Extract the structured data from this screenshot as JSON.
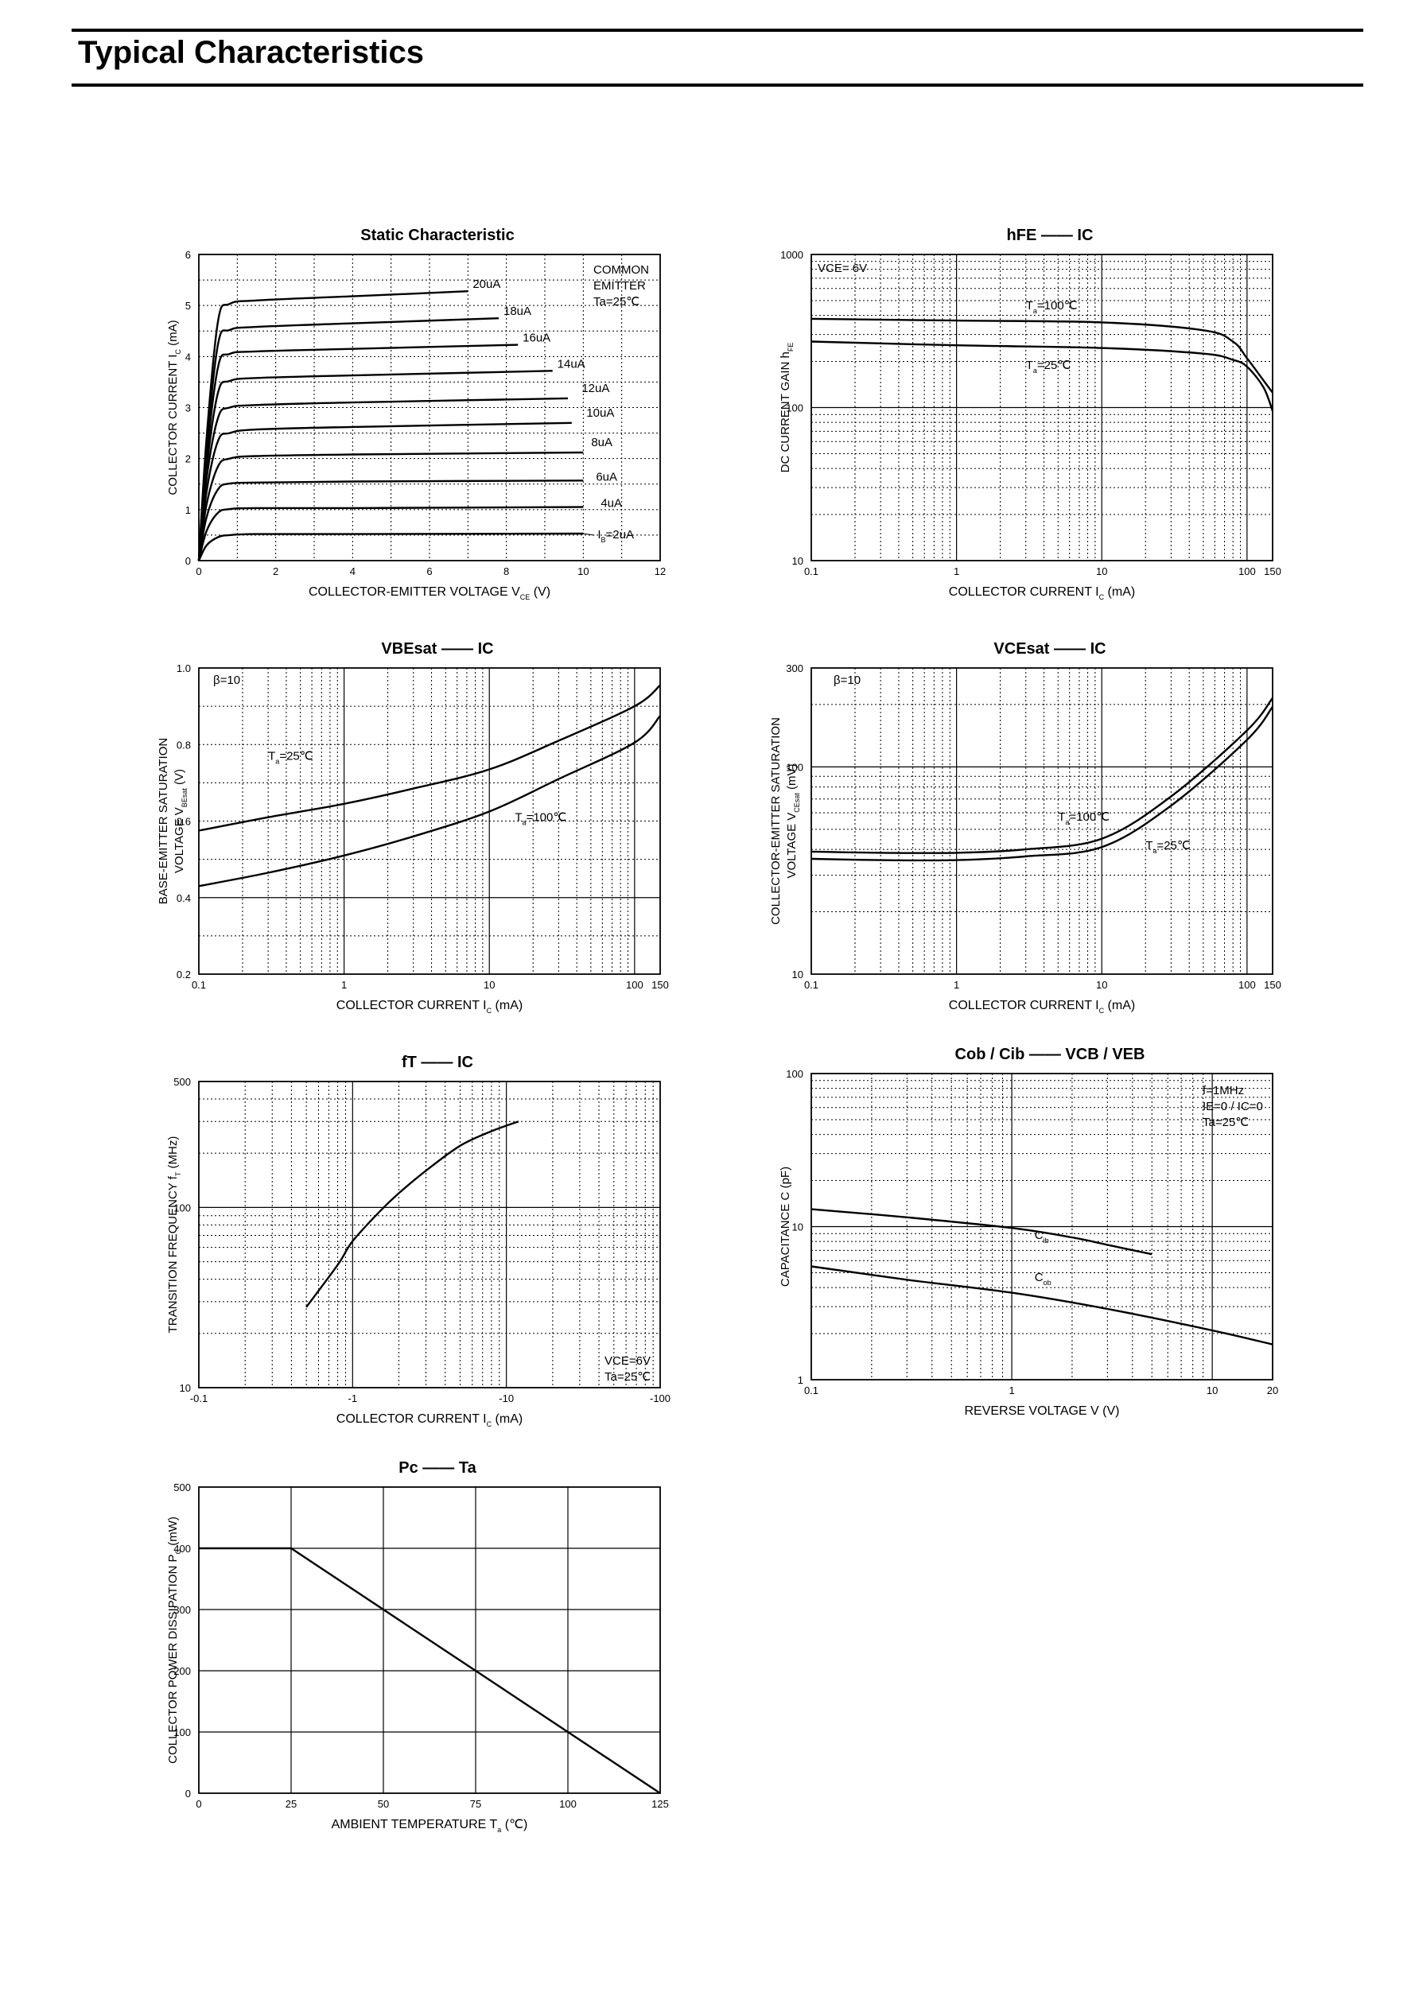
{
  "page": {
    "title": "Typical Characteristics"
  },
  "chart_data": [
    {
      "id": "static",
      "type": "line",
      "title": "Static Characteristic",
      "ylabel": "COLLECTOR CURRENT",
      "ylabel_sym": "I",
      "ylabel_sub": "C",
      "ylabel_unit": "(mA)",
      "xlabel": "COLLECTOR-EMITTER VOLTAGE",
      "xlabel_sym": "V",
      "xlabel_sub": "CE",
      "xlabel_unit": "(V)",
      "x_scale": "linear",
      "y_scale": "linear",
      "xlim": [
        0,
        12
      ],
      "ylim": [
        0,
        6
      ],
      "xticks": [
        0,
        2,
        4,
        6,
        8,
        10,
        12
      ],
      "yticks": [
        0,
        1,
        2,
        3,
        4,
        5,
        6
      ],
      "grid": "dotted",
      "conditions": [
        "COMMON",
        "EMITTER",
        "Ta=25℃"
      ],
      "series": [
        {
          "name": "IB=2uA",
          "x": [
            0,
            0.2,
            0.5,
            0.8,
            1.5,
            4,
            10
          ],
          "y": [
            0,
            0.3,
            0.46,
            0.5,
            0.52,
            0.52,
            0.53
          ]
        },
        {
          "name": "4uA",
          "x": [
            0,
            0.2,
            0.5,
            0.8,
            1.5,
            4,
            10
          ],
          "y": [
            0,
            0.58,
            0.94,
            1.01,
            1.03,
            1.03,
            1.05
          ]
        },
        {
          "name": "6uA",
          "x": [
            0,
            0.2,
            0.5,
            0.8,
            1.5,
            4,
            10
          ],
          "y": [
            0,
            0.85,
            1.4,
            1.51,
            1.53,
            1.55,
            1.57
          ]
        },
        {
          "name": "8uA",
          "x": [
            0,
            0.2,
            0.5,
            0.8,
            1.5,
            4,
            10
          ],
          "y": [
            0,
            1.1,
            1.85,
            2.0,
            2.05,
            2.08,
            2.12
          ]
        },
        {
          "name": "10uA",
          "x": [
            0,
            0.2,
            0.5,
            0.8,
            1.5,
            4,
            9.7
          ],
          "y": [
            0,
            1.35,
            2.35,
            2.5,
            2.57,
            2.62,
            2.7
          ]
        },
        {
          "name": "12uA",
          "x": [
            0,
            0.2,
            0.5,
            0.8,
            1.5,
            4,
            9.6
          ],
          "y": [
            0,
            1.6,
            2.8,
            3.0,
            3.05,
            3.1,
            3.18
          ]
        },
        {
          "name": "14uA",
          "x": [
            0,
            0.2,
            0.5,
            0.8,
            1.5,
            4,
            9.2
          ],
          "y": [
            0,
            1.8,
            3.3,
            3.52,
            3.58,
            3.63,
            3.72
          ]
        },
        {
          "name": "16uA",
          "x": [
            0,
            0.2,
            0.5,
            0.8,
            1.5,
            4,
            8.3
          ],
          "y": [
            0,
            2.0,
            3.8,
            4.05,
            4.1,
            4.15,
            4.23
          ]
        },
        {
          "name": "18uA",
          "x": [
            0,
            0.2,
            0.5,
            0.8,
            1.5,
            4,
            7.8
          ],
          "y": [
            0,
            2.2,
            4.25,
            4.52,
            4.58,
            4.65,
            4.75
          ]
        },
        {
          "name": "20uA",
          "x": [
            0,
            0.2,
            0.5,
            0.8,
            1.5,
            4,
            7.0
          ],
          "y": [
            0,
            2.4,
            4.7,
            5.03,
            5.1,
            5.18,
            5.28
          ]
        }
      ]
    },
    {
      "id": "hfe",
      "type": "line",
      "title": "hFE —— IC",
      "ylabel": "DC CURRENT GAIN",
      "ylabel_sym": "h",
      "ylabel_sub": "FE",
      "xlabel": "COLLECTOR CURRENT",
      "xlabel_sym": "I",
      "xlabel_sub": "C",
      "xlabel_unit": "(mA)",
      "x_scale": "log",
      "y_scale": "log",
      "xlim": [
        0.1,
        150
      ],
      "ylim": [
        10,
        1000
      ],
      "xticks": [
        "0.1",
        "1",
        "10",
        "100",
        "150"
      ],
      "yticks": [
        "10",
        "100",
        "1000"
      ],
      "grid": "dotted",
      "conditions": [
        "VCE= 6V"
      ],
      "series": [
        {
          "name": "Ta=100℃",
          "x": [
            0.1,
            1,
            10,
            50,
            80,
            100,
            130,
            150
          ],
          "y": [
            380,
            370,
            360,
            320,
            270,
            210,
            150,
            125
          ]
        },
        {
          "name": "Ta=25℃",
          "x": [
            0.1,
            1,
            10,
            50,
            80,
            100,
            130,
            150
          ],
          "y": [
            270,
            255,
            245,
            225,
            205,
            185,
            135,
            95
          ]
        }
      ]
    },
    {
      "id": "vbesat",
      "type": "line",
      "title": "VBEsat —— IC",
      "ylabel": "BASE-EMITTER SATURATION",
      "ylabel2": "VOLTAGE",
      "ylabel_sym": "V",
      "ylabel_sub": "BEsat",
      "ylabel_unit": "(V)",
      "xlabel": "COLLECTOR CURRENT",
      "xlabel_sym": "I",
      "xlabel_sub": "C",
      "xlabel_unit": "(mA)",
      "x_scale": "log",
      "y_scale": "linear",
      "xlim": [
        0.1,
        150
      ],
      "ylim": [
        0.2,
        1.0
      ],
      "xticks": [
        "0.1",
        "1",
        "10",
        "100",
        "150"
      ],
      "yticks": [
        "0.2",
        "0.4",
        "0.6",
        "0.8",
        "1.0"
      ],
      "grid": "dotted",
      "conditions": [
        "β=10"
      ],
      "series": [
        {
          "name": "Ta=25℃",
          "x": [
            0.1,
            0.3,
            1,
            3,
            10,
            30,
            100,
            150
          ],
          "y": [
            0.575,
            0.61,
            0.645,
            0.685,
            0.735,
            0.81,
            0.9,
            0.955
          ]
        },
        {
          "name": "Ta=100℃",
          "x": [
            0.1,
            0.3,
            1,
            3,
            10,
            30,
            100,
            150
          ],
          "y": [
            0.43,
            0.465,
            0.51,
            0.56,
            0.625,
            0.71,
            0.805,
            0.875
          ]
        }
      ]
    },
    {
      "id": "vcesat",
      "type": "line",
      "title": "VCEsat —— IC",
      "ylabel": "COLLECTOR-EMITTER SATURATION",
      "ylabel2": "VOLTAGE",
      "ylabel_sym": "V",
      "ylabel_sub": "CEsat",
      "ylabel_unit": "(mV)",
      "xlabel": "COLLECTOR CURRENT",
      "xlabel_sym": "I",
      "xlabel_sub": "C",
      "xlabel_unit": "(mA)",
      "x_scale": "log",
      "y_scale": "log",
      "xlim": [
        0.1,
        150
      ],
      "ylim": [
        10,
        300
      ],
      "xticks": [
        "0.1",
        "1",
        "10",
        "100",
        "150"
      ],
      "yticks": [
        "10",
        "100",
        "300"
      ],
      "grid": "dotted",
      "conditions": [
        "β=10"
      ],
      "series": [
        {
          "name": "Ta=100℃",
          "x": [
            0.1,
            0.3,
            1,
            3,
            10,
            30,
            100,
            150
          ],
          "y": [
            39,
            38.5,
            38.5,
            40,
            45,
            72,
            150,
            215
          ]
        },
        {
          "name": "Ta=25℃",
          "x": [
            0.1,
            0.3,
            1,
            3,
            10,
            30,
            100,
            150
          ],
          "y": [
            36,
            35.5,
            35.5,
            37,
            41,
            65,
            135,
            195
          ]
        }
      ]
    },
    {
      "id": "ft",
      "type": "line",
      "title": "fT —— IC",
      "ylabel": "TRANSITION FREQUENCY",
      "ylabel_sym": "f",
      "ylabel_sub": "T",
      "ylabel_unit": "(MHz)",
      "xlabel": "COLLECTOR CURRENT",
      "xlabel_sym": "I",
      "xlabel_sub": "C",
      "xlabel_unit": "(mA)",
      "x_scale": "log",
      "y_scale": "log",
      "xlim": [
        0.1,
        100
      ],
      "ylim": [
        10,
        500
      ],
      "xticks": [
        "-0.1",
        "-1",
        "-10",
        "-100"
      ],
      "yticks": [
        "10",
        "100",
        "500"
      ],
      "grid": "dotted",
      "conditions": [
        "VCE=6V",
        "Ta=25℃"
      ],
      "series": [
        {
          "name": "fT",
          "x": [
            0.5,
            0.8,
            1,
            1.5,
            2,
            3,
            5,
            8,
            12
          ],
          "y": [
            28,
            48,
            65,
            95,
            120,
            160,
            220,
            265,
            300
          ]
        }
      ]
    },
    {
      "id": "cap",
      "type": "line",
      "title": "Cob / Cib —— VCB / VEB",
      "ylabel": "CAPACITANCE",
      "ylabel_sym": "C",
      "ylabel_unit": "(pF)",
      "xlabel": "REVERSE  VOLTAGE",
      "xlabel_sym": "V",
      "xlabel_unit": "(V)",
      "x_scale": "log",
      "y_scale": "log",
      "xlim": [
        0.1,
        20
      ],
      "ylim": [
        1,
        100
      ],
      "xticks": [
        "0.1",
        "1",
        "10",
        "20"
      ],
      "yticks": [
        "1",
        "10",
        "100"
      ],
      "grid": "dotted",
      "conditions": [
        "f=1MHz",
        "IE=0 / IC=0",
        "Ta=25℃"
      ],
      "series": [
        {
          "name": "Cib",
          "x": [
            0.1,
            0.3,
            1,
            2,
            3,
            5
          ],
          "y": [
            13,
            11.5,
            9.8,
            8.5,
            7.6,
            6.6
          ]
        },
        {
          "name": "Cob",
          "x": [
            0.1,
            0.3,
            1,
            3,
            10,
            20
          ],
          "y": [
            5.5,
            4.5,
            3.7,
            2.9,
            2.1,
            1.7
          ]
        }
      ]
    },
    {
      "id": "pc",
      "type": "line",
      "title": "Pc —— Ta",
      "ylabel": "COLLECTOR POWER DISSIPATION",
      "ylabel_sym": "P",
      "ylabel_sub": "C",
      "ylabel_unit": "(mW)",
      "xlabel": "AMBIENT TEMPERATURE",
      "xlabel_sym": "T",
      "xlabel_sub": "a",
      "xlabel_unit": "(℃)",
      "x_scale": "linear",
      "y_scale": "linear",
      "xlim": [
        0,
        125
      ],
      "ylim": [
        0,
        500
      ],
      "xticks": [
        0,
        25,
        50,
        75,
        100,
        125
      ],
      "yticks": [
        0,
        100,
        200,
        300,
        400,
        500
      ],
      "grid": "solid",
      "series": [
        {
          "name": "Pc",
          "x": [
            0,
            25,
            125
          ],
          "y": [
            400,
            400,
            0
          ]
        }
      ]
    }
  ]
}
